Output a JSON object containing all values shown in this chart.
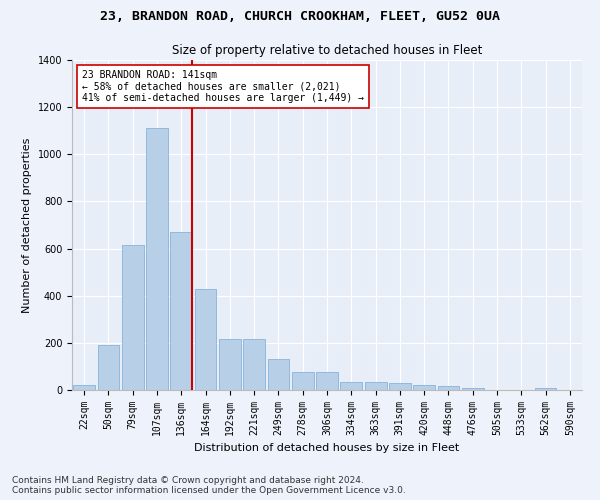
{
  "title1": "23, BRANDON ROAD, CHURCH CROOKHAM, FLEET, GU52 0UA",
  "title2": "Size of property relative to detached houses in Fleet",
  "xlabel": "Distribution of detached houses by size in Fleet",
  "ylabel": "Number of detached properties",
  "bar_labels": [
    "22sqm",
    "50sqm",
    "79sqm",
    "107sqm",
    "136sqm",
    "164sqm",
    "192sqm",
    "221sqm",
    "249sqm",
    "278sqm",
    "306sqm",
    "334sqm",
    "363sqm",
    "391sqm",
    "420sqm",
    "448sqm",
    "476sqm",
    "505sqm",
    "533sqm",
    "562sqm",
    "590sqm"
  ],
  "bar_values": [
    20,
    190,
    615,
    1110,
    670,
    430,
    215,
    215,
    130,
    75,
    75,
    35,
    35,
    30,
    20,
    18,
    10,
    0,
    0,
    10,
    0
  ],
  "bar_color": "#b8cfe8",
  "bar_edge_color": "#7aaad4",
  "bg_color": "#e8eef8",
  "grid_color": "#ffffff",
  "vline_pos": 4.425,
  "vline_color": "#cc0000",
  "annotation_text": "23 BRANDON ROAD: 141sqm\n← 58% of detached houses are smaller (2,021)\n41% of semi-detached houses are larger (1,449) →",
  "annotation_box_color": "#ffffff",
  "annotation_box_edge": "#cc0000",
  "ylim": [
    0,
    1400
  ],
  "yticks": [
    0,
    200,
    400,
    600,
    800,
    1000,
    1200,
    1400
  ],
  "footnote": "Contains HM Land Registry data © Crown copyright and database right 2024.\nContains public sector information licensed under the Open Government Licence v3.0.",
  "title1_fontsize": 9.5,
  "title2_fontsize": 8.5,
  "xlabel_fontsize": 8,
  "ylabel_fontsize": 8,
  "tick_fontsize": 7,
  "annotation_fontsize": 7,
  "footnote_fontsize": 6.5
}
